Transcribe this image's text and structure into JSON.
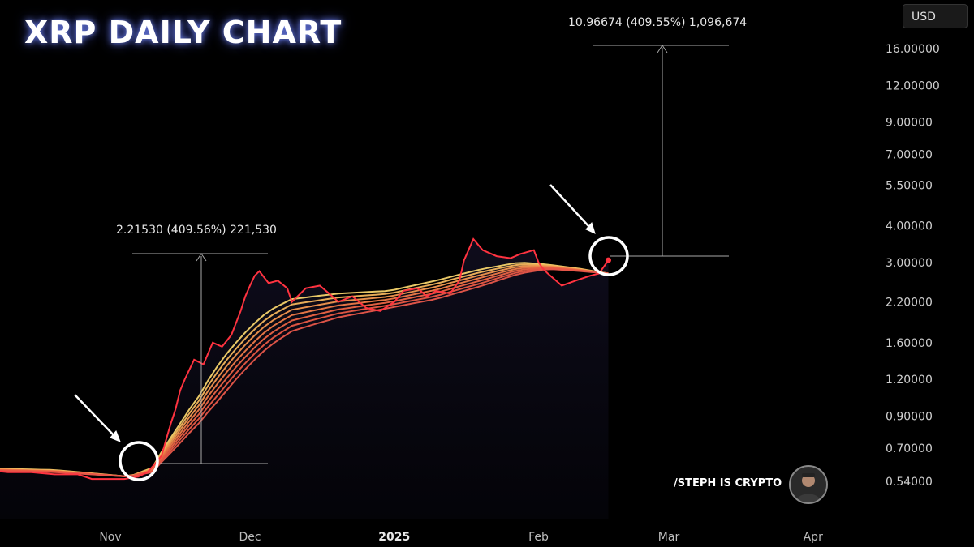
{
  "chart_data": {
    "type": "line",
    "title": "XRP DAILY CHART",
    "currency": "USD",
    "y_scale": "log",
    "ylim": [
      0.48,
      19
    ],
    "y_ticks": [
      "16.00000",
      "12.00000",
      "9.00000",
      "7.00000",
      "5.50000",
      "4.00000",
      "3.00000",
      "2.20000",
      "1.60000",
      "1.20000",
      "0.90000",
      "0.70000",
      "0.54000"
    ],
    "x_ticks": [
      "Nov",
      "Dec",
      "2025",
      "Feb",
      "Mar",
      "Apr"
    ],
    "series": [
      {
        "color": "#ff3340",
        "x": [
          "2024-10-01",
          "2024-10-05",
          "2024-10-10",
          "2024-10-15",
          "2024-10-20",
          "2024-10-25",
          "2024-10-28",
          "2024-11-01",
          "2024-11-04",
          "2024-11-07",
          "2024-11-09",
          "2024-11-11",
          "2024-11-12",
          "2024-11-13",
          "2024-11-14",
          "2024-11-15",
          "2024-11-16",
          "2024-11-17",
          "2024-11-19",
          "2024-11-21",
          "2024-11-23",
          "2024-11-25",
          "2024-11-27",
          "2024-11-29",
          "2024-11-30",
          "2024-12-01",
          "2024-12-02",
          "2024-12-03",
          "2024-12-05",
          "2024-12-07",
          "2024-12-09",
          "2024-12-10",
          "2024-12-13",
          "2024-12-16",
          "2024-12-18",
          "2024-12-20",
          "2024-12-23",
          "2024-12-26",
          "2024-12-29",
          "2025-01-01",
          "2025-01-03",
          "2025-01-06",
          "2025-01-08",
          "2025-01-10",
          "2025-01-13",
          "2025-01-15",
          "2025-01-16",
          "2025-01-18",
          "2025-01-20",
          "2025-01-23",
          "2025-01-26",
          "2025-01-28",
          "2025-01-31",
          "2025-02-01",
          "2025-02-02",
          "2025-02-03",
          "2025-02-06",
          "2025-02-09",
          "2025-02-12",
          "2025-02-14",
          "2025-02-16"
        ],
        "values": [
          0.6,
          0.59,
          0.58,
          0.58,
          0.57,
          0.57,
          0.55,
          0.55,
          0.55,
          0.56,
          0.58,
          0.63,
          0.66,
          0.75,
          0.85,
          0.95,
          1.1,
          1.2,
          1.4,
          1.35,
          1.6,
          1.55,
          1.7,
          2.05,
          2.3,
          2.5,
          2.7,
          2.8,
          2.55,
          2.6,
          2.45,
          2.2,
          2.45,
          2.5,
          2.35,
          2.2,
          2.3,
          2.1,
          2.05,
          2.2,
          2.4,
          2.45,
          2.3,
          2.4,
          2.35,
          2.6,
          3.05,
          3.6,
          3.3,
          3.15,
          3.1,
          3.2,
          3.3,
          3.0,
          2.85,
          2.75,
          2.5,
          2.6,
          2.7,
          2.75,
          3.05
        ]
      },
      {
        "color": "#f5d36b",
        "x": [
          "2024-10-01",
          "2024-10-20",
          "2024-11-05",
          "2024-11-10",
          "2024-11-15",
          "2024-11-20",
          "2024-11-25",
          "2024-12-01",
          "2024-12-05",
          "2024-12-10",
          "2024-12-20",
          "2024-12-31",
          "2025-01-10",
          "2025-01-20",
          "2025-01-28",
          "2025-02-03",
          "2025-02-10",
          "2025-02-16"
        ],
        "values": [
          0.6,
          0.59,
          0.56,
          0.6,
          0.8,
          1.05,
          1.4,
          1.8,
          2.05,
          2.25,
          2.35,
          2.4,
          2.6,
          2.85,
          3.0,
          2.95,
          2.85,
          2.75
        ]
      },
      {
        "color": "#e8574a",
        "x": [
          "2024-10-01",
          "2024-10-20",
          "2024-11-05",
          "2024-11-10",
          "2024-11-15",
          "2024-11-20",
          "2024-11-25",
          "2024-12-01",
          "2024-12-05",
          "2024-12-10",
          "2024-12-20",
          "2024-12-31",
          "2025-01-10",
          "2025-01-20",
          "2025-01-28",
          "2025-02-03",
          "2025-02-10",
          "2025-02-16"
        ],
        "values": [
          0.59,
          0.58,
          0.56,
          0.58,
          0.7,
          0.85,
          1.05,
          1.35,
          1.55,
          1.75,
          1.95,
          2.1,
          2.25,
          2.5,
          2.75,
          2.85,
          2.8,
          2.75
        ]
      }
    ],
    "annotations": [
      {
        "text": "2.21530 (409.56%) 221,530"
      },
      {
        "text": "10.96674 (409.55%) 1,096,674"
      }
    ]
  },
  "header": {
    "title": "XRP DAILY CHART",
    "currency_button": "USD"
  },
  "watermark": {
    "author": "/STEPH IS CRYPTO"
  }
}
